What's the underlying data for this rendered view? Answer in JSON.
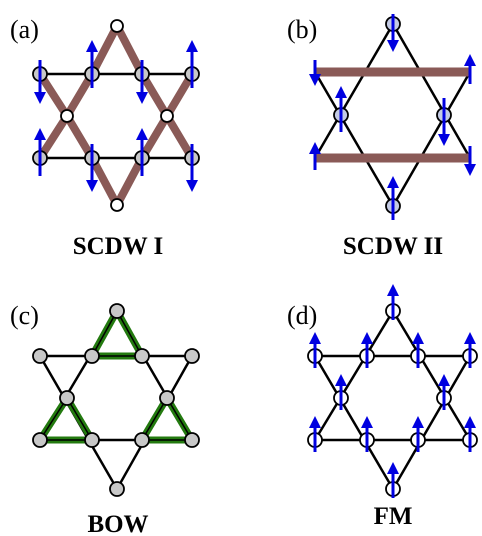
{
  "panels": [
    {
      "label": "(a)",
      "caption": "SCDW I"
    },
    {
      "label": "(b)",
      "caption": "SCDW II"
    },
    {
      "label": "(c)",
      "caption": "BOW"
    },
    {
      "label": "(d)",
      "caption": "FM"
    }
  ],
  "colors": {
    "lattice": "#000000",
    "site_fill": "#c8c8c8",
    "site_light_blue": "#c4cbe4",
    "site_empty": "#ffffff",
    "spin_arrow": "#0000e0",
    "scdw_bond": "#8a5a57",
    "bow_bond": "#237a0f"
  }
}
